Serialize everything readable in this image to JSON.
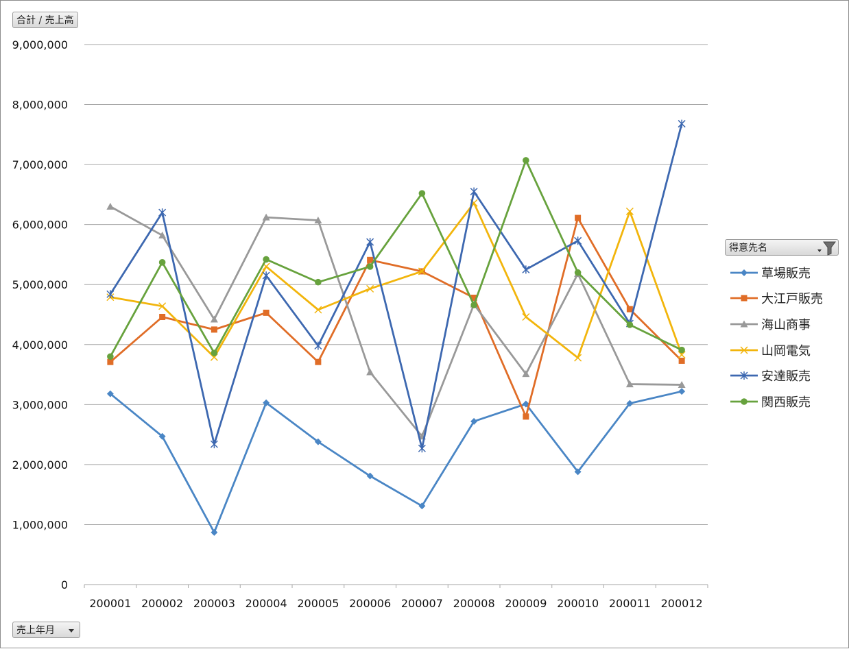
{
  "field_buttons": {
    "values": "合計 / 売上高",
    "axis": "売上年月",
    "legend": "得意先名"
  },
  "chart_data": {
    "type": "line",
    "categories": [
      "200001",
      "200002",
      "200003",
      "200004",
      "200005",
      "200006",
      "200007",
      "200008",
      "200009",
      "200010",
      "200011",
      "200012"
    ],
    "y_ticks": [
      "0",
      "1,000,000",
      "2,000,000",
      "3,000,000",
      "4,000,000",
      "5,000,000",
      "6,000,000",
      "7,000,000",
      "8,000,000",
      "9,000,000"
    ],
    "ylim": [
      0,
      9000000
    ],
    "grid": true,
    "legend_position": "right",
    "series": [
      {
        "name": "草場販売",
        "color": "#4a86c5",
        "marker": "diamond",
        "values": [
          3180000,
          2470000,
          870000,
          3030000,
          2380000,
          1810000,
          1310000,
          2720000,
          3010000,
          1880000,
          3020000,
          3220000
        ]
      },
      {
        "name": "大江戸販売",
        "color": "#e06d27",
        "marker": "square",
        "values": [
          3710000,
          4460000,
          4250000,
          4530000,
          3710000,
          5410000,
          5220000,
          4780000,
          2800000,
          6110000,
          4590000,
          3730000
        ]
      },
      {
        "name": "海山商事",
        "color": "#999999",
        "marker": "triangle",
        "values": [
          6300000,
          5820000,
          4420000,
          6120000,
          6070000,
          3540000,
          2470000,
          4670000,
          3510000,
          5180000,
          3340000,
          3330000
        ]
      },
      {
        "name": "山岡電気",
        "color": "#f2b50c",
        "marker": "x",
        "values": [
          4790000,
          4640000,
          3790000,
          5300000,
          4580000,
          4930000,
          5220000,
          6360000,
          4460000,
          3780000,
          6220000,
          3830000
        ]
      },
      {
        "name": "安達販売",
        "color": "#3d68b0",
        "marker": "star",
        "values": [
          4840000,
          6200000,
          2340000,
          5150000,
          3980000,
          5710000,
          2270000,
          6550000,
          5250000,
          5730000,
          4350000,
          7680000
        ]
      },
      {
        "name": "関西販売",
        "color": "#67a23d",
        "marker": "circle",
        "values": [
          3800000,
          5370000,
          3860000,
          5420000,
          5040000,
          5300000,
          6520000,
          4660000,
          7070000,
          5200000,
          4330000,
          3910000
        ]
      }
    ]
  }
}
